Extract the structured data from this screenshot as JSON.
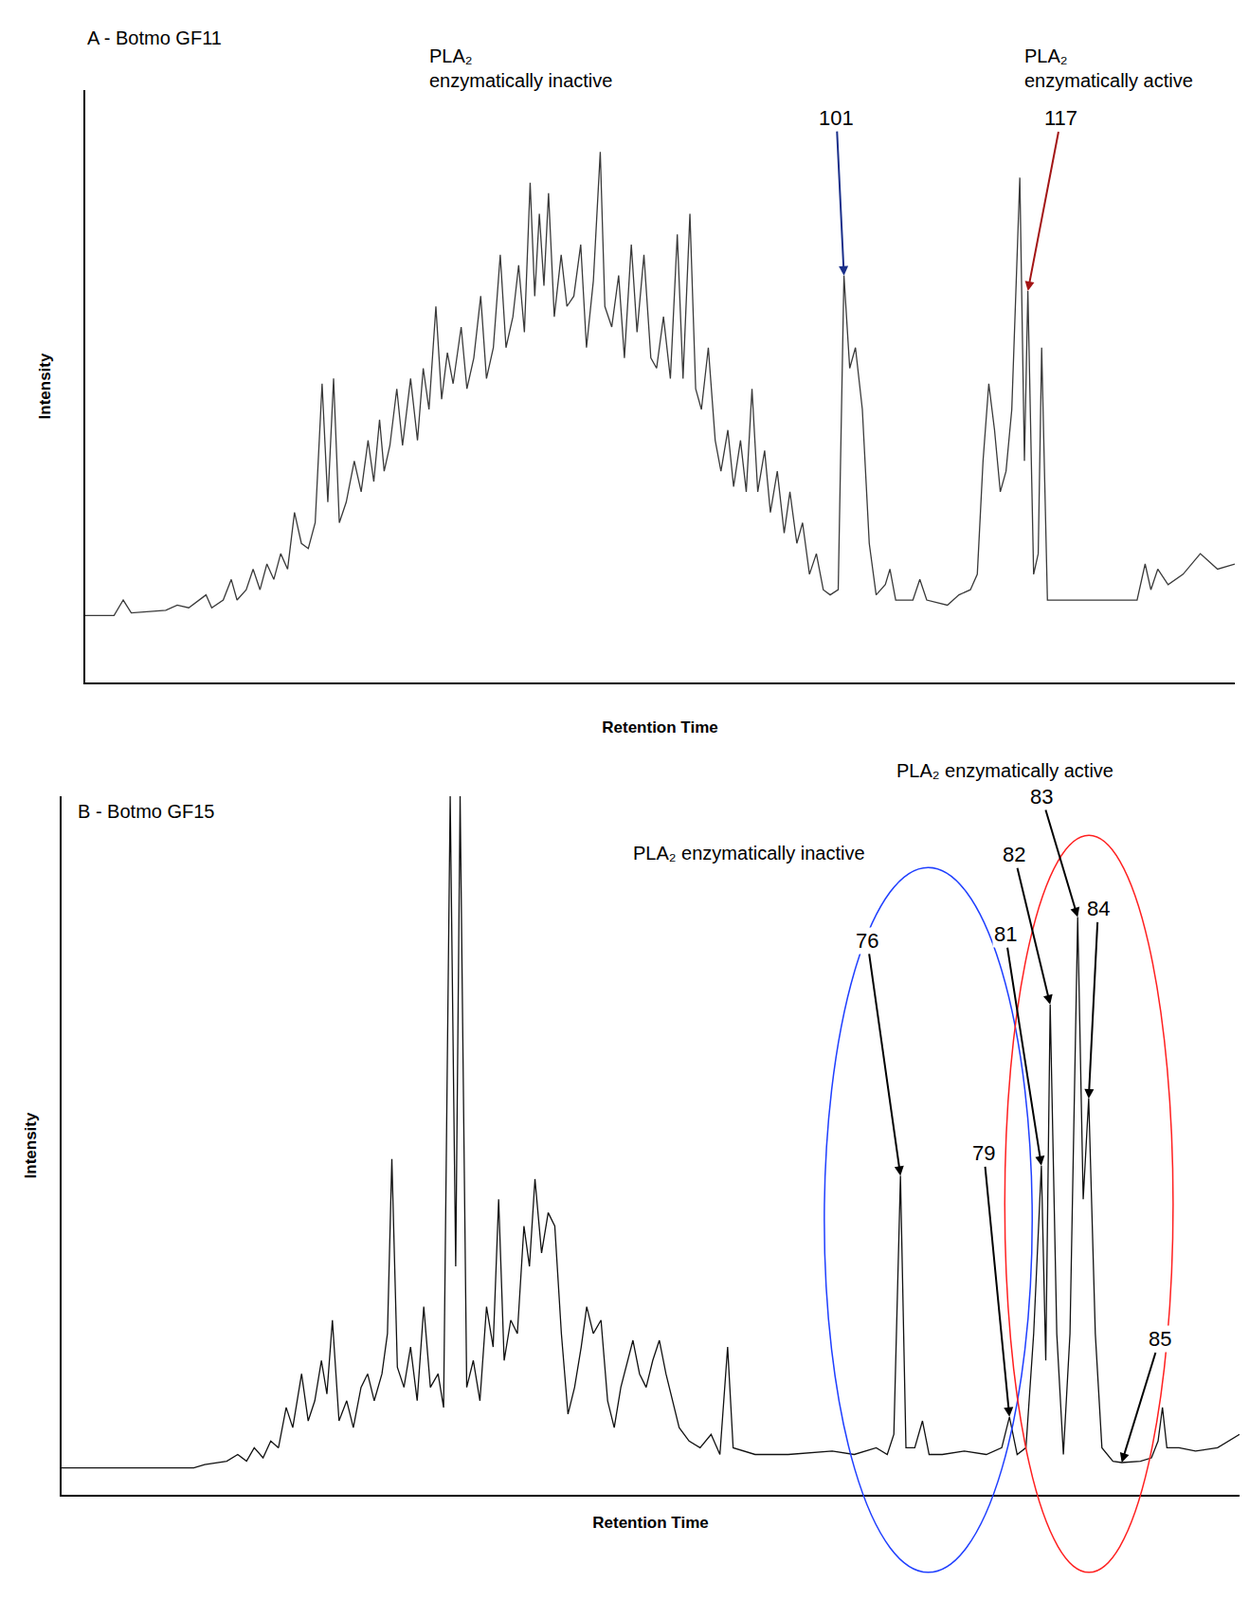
{
  "chart_data": [
    {
      "type": "line",
      "title": "A - Botmo GF11",
      "x_label": "Retention Time",
      "y_label": "Intensity",
      "labels": [
        "PLA₂ enzymatically inactive",
        "PLA₂ enzymatically active"
      ],
      "annotations": [
        {
          "text": "101",
          "x": 66,
          "y": 66
        },
        {
          "text": "117",
          "x": 82,
          "y": 63
        }
      ],
      "x": [
        0,
        2.5,
        3.3,
        4,
        7,
        8,
        9,
        10.5,
        11,
        12,
        12.7,
        13.2,
        14,
        14.6,
        15.2,
        15.8,
        16.4,
        17,
        17.6,
        18.2,
        18.8,
        19.4,
        20,
        20.6,
        21.1,
        21.6,
        22.1,
        22.7,
        23.4,
        24,
        24.6,
        25.1,
        25.6,
        26,
        26.5,
        27.1,
        27.6,
        28.3,
        28.9,
        29.4,
        29.9,
        30.5,
        31,
        31.5,
        32,
        32.7,
        33.2,
        33.8,
        34.4,
        34.9,
        35.5,
        36.1,
        36.6,
        37.2,
        37.7,
        38.2,
        38.7,
        39.1,
        39.5,
        39.9,
        40.3,
        40.8,
        41.4,
        41.9,
        42.5,
        43.1,
        43.6,
        44.2,
        44.8,
        45.2,
        45.8,
        46.4,
        46.9,
        47.5,
        48,
        48.6,
        49.2,
        49.7,
        50.3,
        50.9,
        51.5,
        52,
        52.6,
        53.1,
        53.6,
        54.2,
        54.8,
        55.3,
        55.9,
        56.4,
        57,
        57.5,
        58,
        58.5,
        59.1,
        59.6,
        60.2,
        60.8,
        61.3,
        61.9,
        62.4,
        63,
        63.6,
        64.2,
        64.8,
        65.5,
        66,
        66.5,
        67,
        67.6,
        68.2,
        68.8,
        69.6,
        70,
        70.5,
        72,
        72.6,
        73.2,
        75,
        76,
        77,
        77.6,
        78.1,
        78.6,
        79.1,
        79.6,
        80.1,
        80.6,
        81.3,
        81.7,
        82,
        82.5,
        82.9,
        83.2,
        83.7,
        86,
        91.5,
        92.2,
        92.7,
        93.3,
        94.2,
        95.5,
        97,
        98.5,
        100
      ],
      "series": [
        {
          "color": "#3a3a3a",
          "values": [
            0,
            0,
            3,
            0.5,
            1,
            2,
            1.5,
            4,
            1.5,
            3,
            7,
            3,
            5,
            9,
            5,
            10,
            7,
            12,
            9,
            20,
            14,
            13,
            18,
            45,
            22,
            46,
            18,
            22,
            30,
            24,
            34,
            26,
            38,
            28,
            33,
            44,
            33,
            46,
            34,
            48,
            40,
            60,
            42,
            51,
            45,
            56,
            44,
            50,
            62,
            46,
            52,
            70,
            52,
            58,
            68,
            55,
            84,
            62,
            78,
            64,
            82,
            58,
            70,
            60,
            62,
            72,
            52,
            65,
            90,
            60,
            56,
            66,
            50,
            72,
            55,
            70,
            50,
            48,
            58,
            46,
            74,
            46,
            78,
            44,
            40,
            52,
            34,
            28,
            36,
            25,
            34,
            24,
            44,
            24,
            32,
            20,
            28,
            16,
            24,
            14,
            18,
            8,
            12,
            5,
            4,
            5,
            66,
            48,
            52,
            40,
            14,
            4,
            6,
            9,
            3,
            3,
            7,
            3,
            2,
            4,
            5,
            8,
            30,
            45,
            36,
            24,
            28,
            40,
            85,
            30,
            63,
            8,
            12,
            52,
            3,
            3,
            3,
            10,
            5,
            9,
            6,
            8,
            12,
            9,
            10
          ]
        }
      ],
      "xlim": [
        0,
        100
      ],
      "ylim": [
        -13,
        102
      ],
      "xticks": [],
      "yticks": [],
      "tick_labels": false,
      "grid": false
    },
    {
      "type": "line",
      "title": "B - Botmo GF15",
      "x_label": "Retention Time",
      "y_label": "Intensity",
      "labels": [
        "PLA₂ enzymatically inactive",
        "PLA₂ enzymatically active"
      ],
      "annotations": [
        {
          "text": "76",
          "x": 76.2,
          "y": 43.5
        },
        {
          "text": "79",
          "x": 86.1,
          "y": 7.6
        },
        {
          "text": "81",
          "x": 89,
          "y": 45
        },
        {
          "text": "82",
          "x": 89.8,
          "y": 69
        },
        {
          "text": "83",
          "x": 92.3,
          "y": 82
        },
        {
          "text": "84",
          "x": 93.3,
          "y": 55
        },
        {
          "text": "85",
          "x": 96.3,
          "y": 0.8
        }
      ],
      "x": [
        0,
        12,
        13,
        15,
        16,
        16.8,
        17.5,
        18.3,
        19,
        19.7,
        20.4,
        21,
        21.8,
        22.4,
        23,
        23.6,
        24.1,
        24.6,
        25.2,
        25.9,
        26.5,
        27.2,
        27.8,
        28.4,
        29.1,
        29.6,
        30,
        30.5,
        31.1,
        31.7,
        32.3,
        32.9,
        33.5,
        34.2,
        34.7,
        35.3,
        35.8,
        36.2,
        36.8,
        37.4,
        38,
        38.6,
        39.2,
        39.7,
        40.2,
        40.8,
        41.4,
        42,
        42.5,
        43,
        43.6,
        44.2,
        44.8,
        45.4,
        46,
        46.6,
        47.2,
        47.7,
        48.3,
        49,
        49.6,
        50.2,
        50.8,
        51.4,
        51.9,
        52.5,
        53.1,
        53.7,
        54.3,
        54.9,
        55.5,
        56.1,
        57,
        58,
        59,
        59.8,
        60.5,
        61,
        63,
        66,
        70,
        72,
        74,
        75,
        75.6,
        76.2,
        76.7,
        77.5,
        78.2,
        78.8,
        80,
        82,
        84,
        85.4,
        86.1,
        86.8,
        87.6,
        88.3,
        89,
        89.4,
        89.8,
        90.4,
        91,
        91.6,
        92.3,
        92.8,
        93.3,
        93.9,
        94.5,
        95.5,
        96.3,
        98,
        99,
        99.6,
        100,
        100.4,
        101.5,
        103,
        105,
        106,
        107
      ],
      "series": [
        {
          "color": "#111111",
          "values": [
            0,
            0,
            0.5,
            1,
            2,
            1,
            3,
            1.5,
            4,
            3,
            9,
            6,
            14,
            7,
            10,
            16,
            11,
            22,
            7,
            10,
            6,
            12,
            14,
            10,
            14,
            20,
            46,
            15,
            12,
            18,
            10,
            24,
            12,
            14,
            9,
            100,
            30,
            100,
            12,
            16,
            10,
            24,
            18,
            40,
            16,
            22,
            20,
            36,
            30,
            43,
            32,
            38,
            36,
            20,
            8,
            12,
            18,
            24,
            20,
            22,
            10,
            6,
            12,
            16,
            19,
            14,
            12,
            16,
            19,
            14,
            10,
            6,
            4,
            3,
            5,
            2,
            18,
            3,
            2,
            2,
            2.5,
            2,
            3,
            2,
            5,
            43.5,
            3,
            3,
            7,
            2,
            2,
            2.5,
            2,
            3,
            7.6,
            2,
            3,
            20,
            45,
            16,
            69,
            20,
            2,
            20,
            82,
            40,
            55,
            20,
            3,
            1,
            0.8,
            1,
            1.5,
            4,
            9,
            3,
            3,
            2.5,
            3,
            4,
            5
          ]
        }
      ],
      "xlim": [
        0,
        107
      ],
      "ylim": [
        -4,
        100
      ],
      "xticks": [],
      "yticks": [],
      "tick_labels": false,
      "grid": false
    }
  ]
}
